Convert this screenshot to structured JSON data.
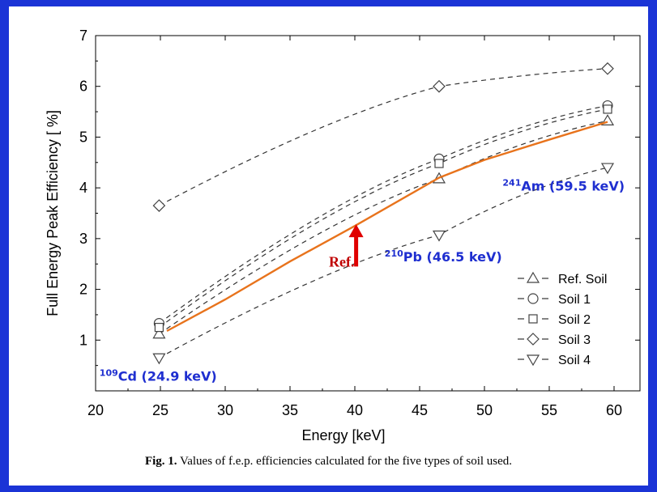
{
  "caption": {
    "label": "Fig. 1.",
    "text": " Values of f.e.p. efficiencies calculated for the five types of soil used."
  },
  "chart_data": {
    "type": "line",
    "xlabel": "Energy [keV]",
    "ylabel": "Full Energy Peak Efficiency  [ %]",
    "xlim": [
      20,
      62
    ],
    "ylim": [
      0,
      7
    ],
    "xticks": [
      20,
      25,
      30,
      35,
      40,
      45,
      50,
      55,
      60
    ],
    "yticks": [
      1,
      2,
      3,
      4,
      5,
      6,
      7
    ],
    "x": [
      24.9,
      46.5,
      59.5
    ],
    "series": [
      {
        "name": "Ref. Soil",
        "marker": "triangle-up",
        "values": [
          1.12,
          4.18,
          5.32
        ]
      },
      {
        "name": "Soil 1",
        "marker": "circle",
        "values": [
          1.33,
          4.57,
          5.62
        ]
      },
      {
        "name": "Soil 2",
        "marker": "square",
        "values": [
          1.25,
          4.48,
          5.55
        ]
      },
      {
        "name": "Soil 3",
        "marker": "diamond",
        "values": [
          3.65,
          6.0,
          6.35
        ]
      },
      {
        "name": "Soil 4",
        "marker": "triangle-down",
        "values": [
          0.65,
          3.07,
          4.4
        ]
      }
    ],
    "reference_curve": {
      "color": "#e8731c",
      "x": [
        25.5,
        30,
        35,
        40,
        46.5,
        50,
        55,
        59.5
      ],
      "y": [
        1.18,
        1.8,
        2.55,
        3.25,
        4.2,
        4.55,
        4.95,
        5.3
      ]
    },
    "annotations": [
      {
        "text": "Ref.",
        "x": 38.0,
        "y": 2.45,
        "color": "#c00000"
      },
      {
        "sup": "109",
        "text": "Cd (24.9 keV)",
        "x": 20.3,
        "y": 0.2,
        "color": "#1f2fd0"
      },
      {
        "sup": "210",
        "text": "Pb (46.5 keV)",
        "x": 42.3,
        "y": 2.55,
        "color": "#1f2fd0"
      },
      {
        "sup": "241",
        "text": "Am (59.5 keV)",
        "x": 51.4,
        "y": 3.95,
        "color": "#1f2fd0"
      }
    ],
    "arrow": {
      "x": 40.1,
      "y_from": 2.45,
      "y_to": 3.25,
      "color": "#e00000"
    },
    "legend_position": "lower-right",
    "grid": false
  }
}
